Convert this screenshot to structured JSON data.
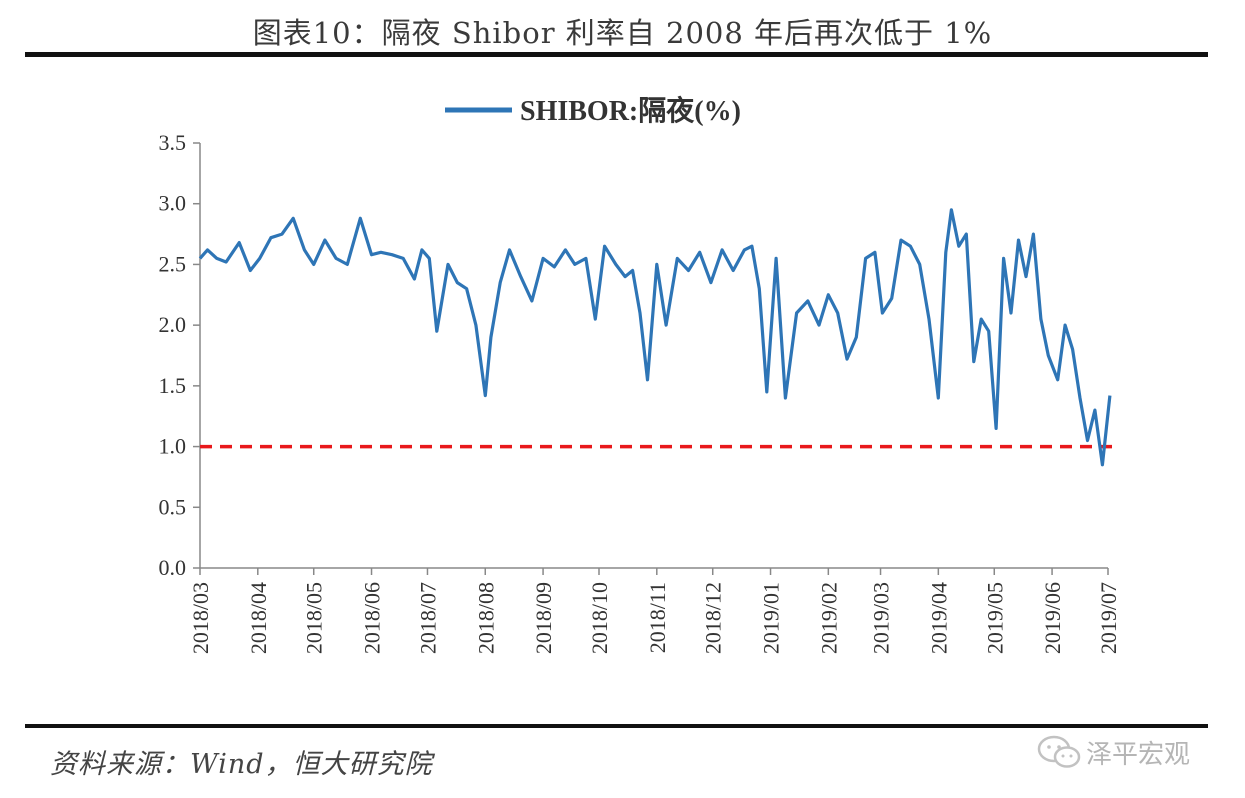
{
  "header": {
    "title": "图表10：隔夜 Shibor 利率自 2008 年后再次低于 1%"
  },
  "footer": {
    "source": "资料来源：Wind，恒大研究院",
    "watermark": "泽平宏观"
  },
  "colors": {
    "series": "#2e75b6",
    "reference": "#e8181b",
    "axis": "#888888"
  },
  "chart_data": {
    "type": "line",
    "title": "",
    "xlabel": "",
    "ylabel": "",
    "ylim": [
      0,
      3.5
    ],
    "yticks": [
      "0.0",
      "0.5",
      "1.0",
      "1.5",
      "2.0",
      "2.5",
      "3.0",
      "3.5"
    ],
    "xticks": [
      "2018/03",
      "2018/04",
      "2018/05",
      "2018/06",
      "2018/07",
      "2018/08",
      "2018/09",
      "2018/10",
      "2018/11",
      "2018/12",
      "2019/01",
      "2019/02",
      "2019/03",
      "2019/04",
      "2019/05",
      "2019/06",
      "2019/07"
    ],
    "grid": false,
    "legend": "top-center",
    "reference_line": {
      "y": 1.0,
      "style": "dashed"
    },
    "series": [
      {
        "name": "SHIBOR:隔夜(%)",
        "x": [
          "2018/03/01",
          "2018/03/05",
          "2018/03/10",
          "2018/03/15",
          "2018/03/22",
          "2018/03/28",
          "2018/04/02",
          "2018/04/08",
          "2018/04/14",
          "2018/04/20",
          "2018/04/26",
          "2018/05/01",
          "2018/05/07",
          "2018/05/13",
          "2018/05/19",
          "2018/05/26",
          "2018/06/01",
          "2018/06/06",
          "2018/06/12",
          "2018/06/18",
          "2018/06/24",
          "2018/06/28",
          "2018/07/02",
          "2018/07/06",
          "2018/07/12",
          "2018/07/17",
          "2018/07/22",
          "2018/07/27",
          "2018/08/01",
          "2018/08/04",
          "2018/08/09",
          "2018/08/14",
          "2018/08/20",
          "2018/08/26",
          "2018/09/01",
          "2018/09/07",
          "2018/09/13",
          "2018/09/18",
          "2018/09/24",
          "2018/09/29",
          "2018/10/04",
          "2018/10/10",
          "2018/10/15",
          "2018/10/19",
          "2018/10/23",
          "2018/10/27",
          "2018/11/01",
          "2018/11/06",
          "2018/11/12",
          "2018/11/18",
          "2018/11/24",
          "2018/11/30",
          "2018/12/06",
          "2018/12/12",
          "2018/12/18",
          "2018/12/22",
          "2018/12/26",
          "2018/12/30",
          "2019/01/04",
          "2019/01/09",
          "2019/01/15",
          "2019/01/21",
          "2019/01/27",
          "2019/02/01",
          "2019/02/06",
          "2019/02/11",
          "2019/02/16",
          "2019/02/21",
          "2019/02/26",
          "2019/03/02",
          "2019/03/07",
          "2019/03/12",
          "2019/03/17",
          "2019/03/22",
          "2019/03/27",
          "2019/04/01",
          "2019/04/05",
          "2019/04/08",
          "2019/04/12",
          "2019/04/16",
          "2019/04/20",
          "2019/04/24",
          "2019/04/28",
          "2019/05/02",
          "2019/05/06",
          "2019/05/10",
          "2019/05/14",
          "2019/05/18",
          "2019/05/22",
          "2019/05/26",
          "2019/05/30",
          "2019/06/04",
          "2019/06/08",
          "2019/06/12",
          "2019/06/16",
          "2019/06/20",
          "2019/06/24",
          "2019/06/28",
          "2019/07/02"
        ],
        "values": [
          2.55,
          2.62,
          2.55,
          2.52,
          2.68,
          2.45,
          2.55,
          2.72,
          2.75,
          2.88,
          2.62,
          2.5,
          2.7,
          2.55,
          2.5,
          2.88,
          2.58,
          2.6,
          2.58,
          2.55,
          2.38,
          2.62,
          2.55,
          1.95,
          2.5,
          2.35,
          2.3,
          2.0,
          1.42,
          1.9,
          2.35,
          2.62,
          2.4,
          2.2,
          2.55,
          2.48,
          2.62,
          2.5,
          2.55,
          2.05,
          2.65,
          2.5,
          2.4,
          2.45,
          2.1,
          1.55,
          2.5,
          2.0,
          2.55,
          2.45,
          2.6,
          2.35,
          2.62,
          2.45,
          2.62,
          2.65,
          2.3,
          1.45,
          2.55,
          1.4,
          2.1,
          2.2,
          2.0,
          2.25,
          2.1,
          1.72,
          1.9,
          2.55,
          2.6,
          2.1,
          2.22,
          2.7,
          2.65,
          2.5,
          2.05,
          1.4,
          2.6,
          2.95,
          2.65,
          2.75,
          1.7,
          2.05,
          1.95,
          1.15,
          2.55,
          2.1,
          2.7,
          2.4,
          2.75,
          2.05,
          1.75,
          1.55,
          2.0,
          1.8,
          1.4,
          1.05,
          1.3,
          0.85,
          1.42
        ]
      }
    ]
  }
}
